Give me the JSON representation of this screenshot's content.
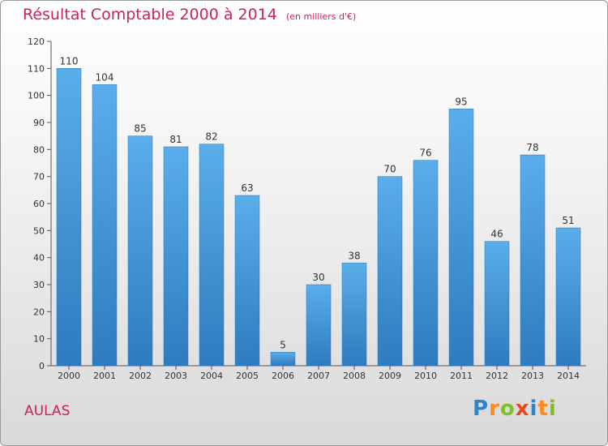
{
  "chart_data": {
    "type": "bar",
    "title": "Résultat Comptable 2000 à 2014",
    "subtitle": "(en milliers d'€)",
    "categories": [
      "2000",
      "2001",
      "2002",
      "2003",
      "2004",
      "2005",
      "2006",
      "2007",
      "2008",
      "2009",
      "2010",
      "2011",
      "2012",
      "2013",
      "2014"
    ],
    "values": [
      110,
      104,
      85,
      81,
      82,
      63,
      5,
      30,
      38,
      70,
      76,
      95,
      46,
      78,
      51
    ],
    "ylim": [
      0,
      120
    ],
    "yticks": [
      0,
      10,
      20,
      30,
      40,
      50,
      60,
      70,
      80,
      90,
      100,
      110,
      120
    ],
    "xlabel": "",
    "ylabel": "",
    "grid": false,
    "bar_color": "#3a8fd4",
    "title_color": "#c8245a"
  },
  "location": "AULAS",
  "logo": {
    "letters": [
      "P",
      "r",
      "o",
      "x",
      "i",
      "t",
      "i"
    ],
    "colors": [
      "#2b86c9",
      "#ff8a1a",
      "#7fbf2a",
      "#e84a1a",
      "#2b86c9",
      "#ff8a1a",
      "#7fbf2a"
    ]
  }
}
